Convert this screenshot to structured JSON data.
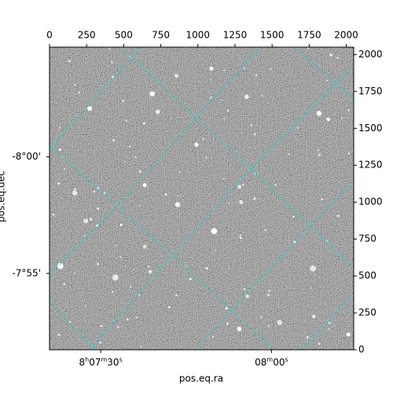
{
  "chart_data": {
    "type": "image",
    "xlabel": "pos.eq.ra",
    "ylabel": "pos.eq.dec",
    "xlim": [
      0,
      2050
    ],
    "ylim": [
      0,
      2050
    ],
    "xticks": [
      0,
      250,
      500,
      750,
      1000,
      1250,
      1500,
      1750,
      2000
    ],
    "yticks": [
      0,
      250,
      500,
      750,
      1000,
      1250,
      1500,
      1750,
      2000
    ],
    "ra_ticks": [
      {
        "value": 345,
        "label": "8h07m30s"
      },
      {
        "value": 1496,
        "label": "08m00s"
      }
    ],
    "dec_ticks": [
      {
        "value": 1307,
        "label": "-8°00'"
      },
      {
        "value": 517,
        "label": "-7°55'"
      }
    ],
    "grid_color": "#22d3d3"
  }
}
